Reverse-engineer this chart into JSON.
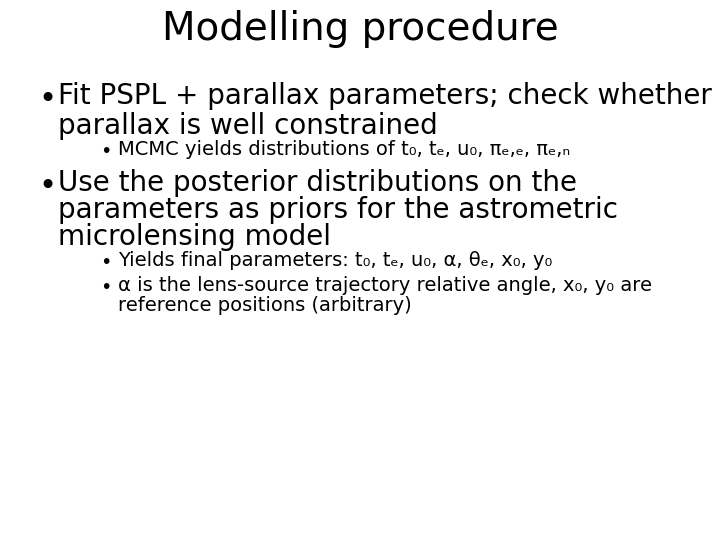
{
  "title": "Modelling procedure",
  "title_fontsize": 28,
  "background_color": "#ffffff",
  "text_color": "#000000",
  "main_bullet_fontsize": 20,
  "sub_bullet_fontsize": 14,
  "bullet_symbol": "•",
  "b1_main_line1": "Fit PSPL + parallax parameters; check whether",
  "b1_main_line2": "parallax is well constrained",
  "b1_sub": "MCMC yields distributions of t₀, tₑ, u₀, πₑ,ₑ, πₑ,ₙ",
  "b2_main_line1": "Use the posterior distributions on the",
  "b2_main_line2": "parameters as priors for the astrometric",
  "b2_main_line3": "microlensing model",
  "b2_sub1": "Yields final parameters: t₀, tₑ, u₀, α, θₑ, x₀, y₀",
  "b2_sub2_line1": "α is the lens-source trajectory relative angle, x₀, y₀ are",
  "b2_sub2_line2": "reference positions (arbitrary)"
}
